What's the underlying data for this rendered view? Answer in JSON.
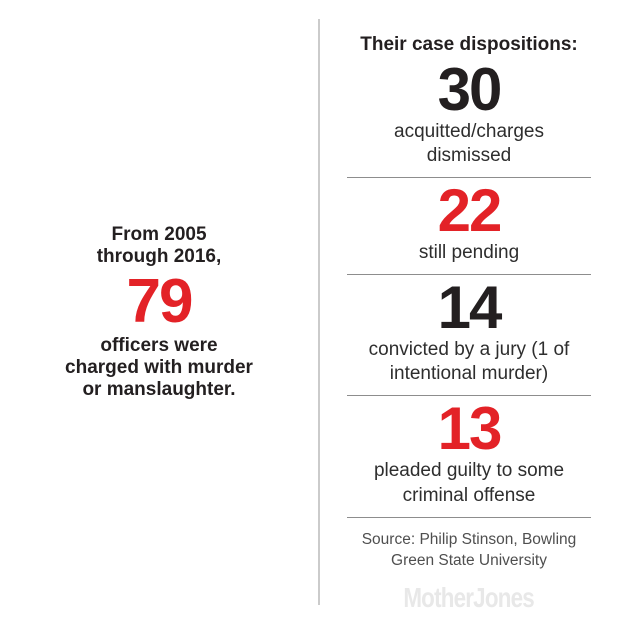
{
  "colors": {
    "accent_red": "#e32227",
    "ink_black": "#231f20",
    "divider_horizontal": "#8d8d8d",
    "divider_vertical": "#cbcbcb",
    "source_gray": "#4f4f4f",
    "logo_gray": "#e8e8e8"
  },
  "left_panel": {
    "intro": "From 2005\nthrough 2016,",
    "value": "79",
    "value_color": "#e32227",
    "description": "officers were\ncharged with murder\nor manslaughter."
  },
  "dispositions": {
    "heading": "Their case dispositions:",
    "items": [
      {
        "value": "30",
        "value_color": "#231f20",
        "label": "acquitted/charges\ndismissed"
      },
      {
        "value": "22",
        "value_color": "#e32227",
        "label": "still pending"
      },
      {
        "value": "14",
        "value_color": "#231f20",
        "label": "convicted by a jury (1 of\nintentional murder)"
      },
      {
        "value": "13",
        "value_color": "#e32227",
        "label": "pleaded guilty to some\ncriminal offense"
      }
    ]
  },
  "footer": {
    "source": "Source: Philip Stinson, Bowling\nGreen State University",
    "logo_text": "MotherJones"
  },
  "chart_data": {
    "type": "table",
    "title": "Their case dispositions:",
    "context": "From 2005 through 2016, 79 officers were charged with murder or manslaughter.",
    "total_officers_charged": 79,
    "categories": [
      "acquitted/charges dismissed",
      "still pending",
      "convicted by a jury (1 of intentional murder)",
      "pleaded guilty to some criminal offense"
    ],
    "values": [
      30,
      22,
      14,
      13
    ],
    "highlight_color_values": [
      "black",
      "red",
      "black",
      "red"
    ],
    "source": "Source: Philip Stinson, Bowling Green State University"
  }
}
